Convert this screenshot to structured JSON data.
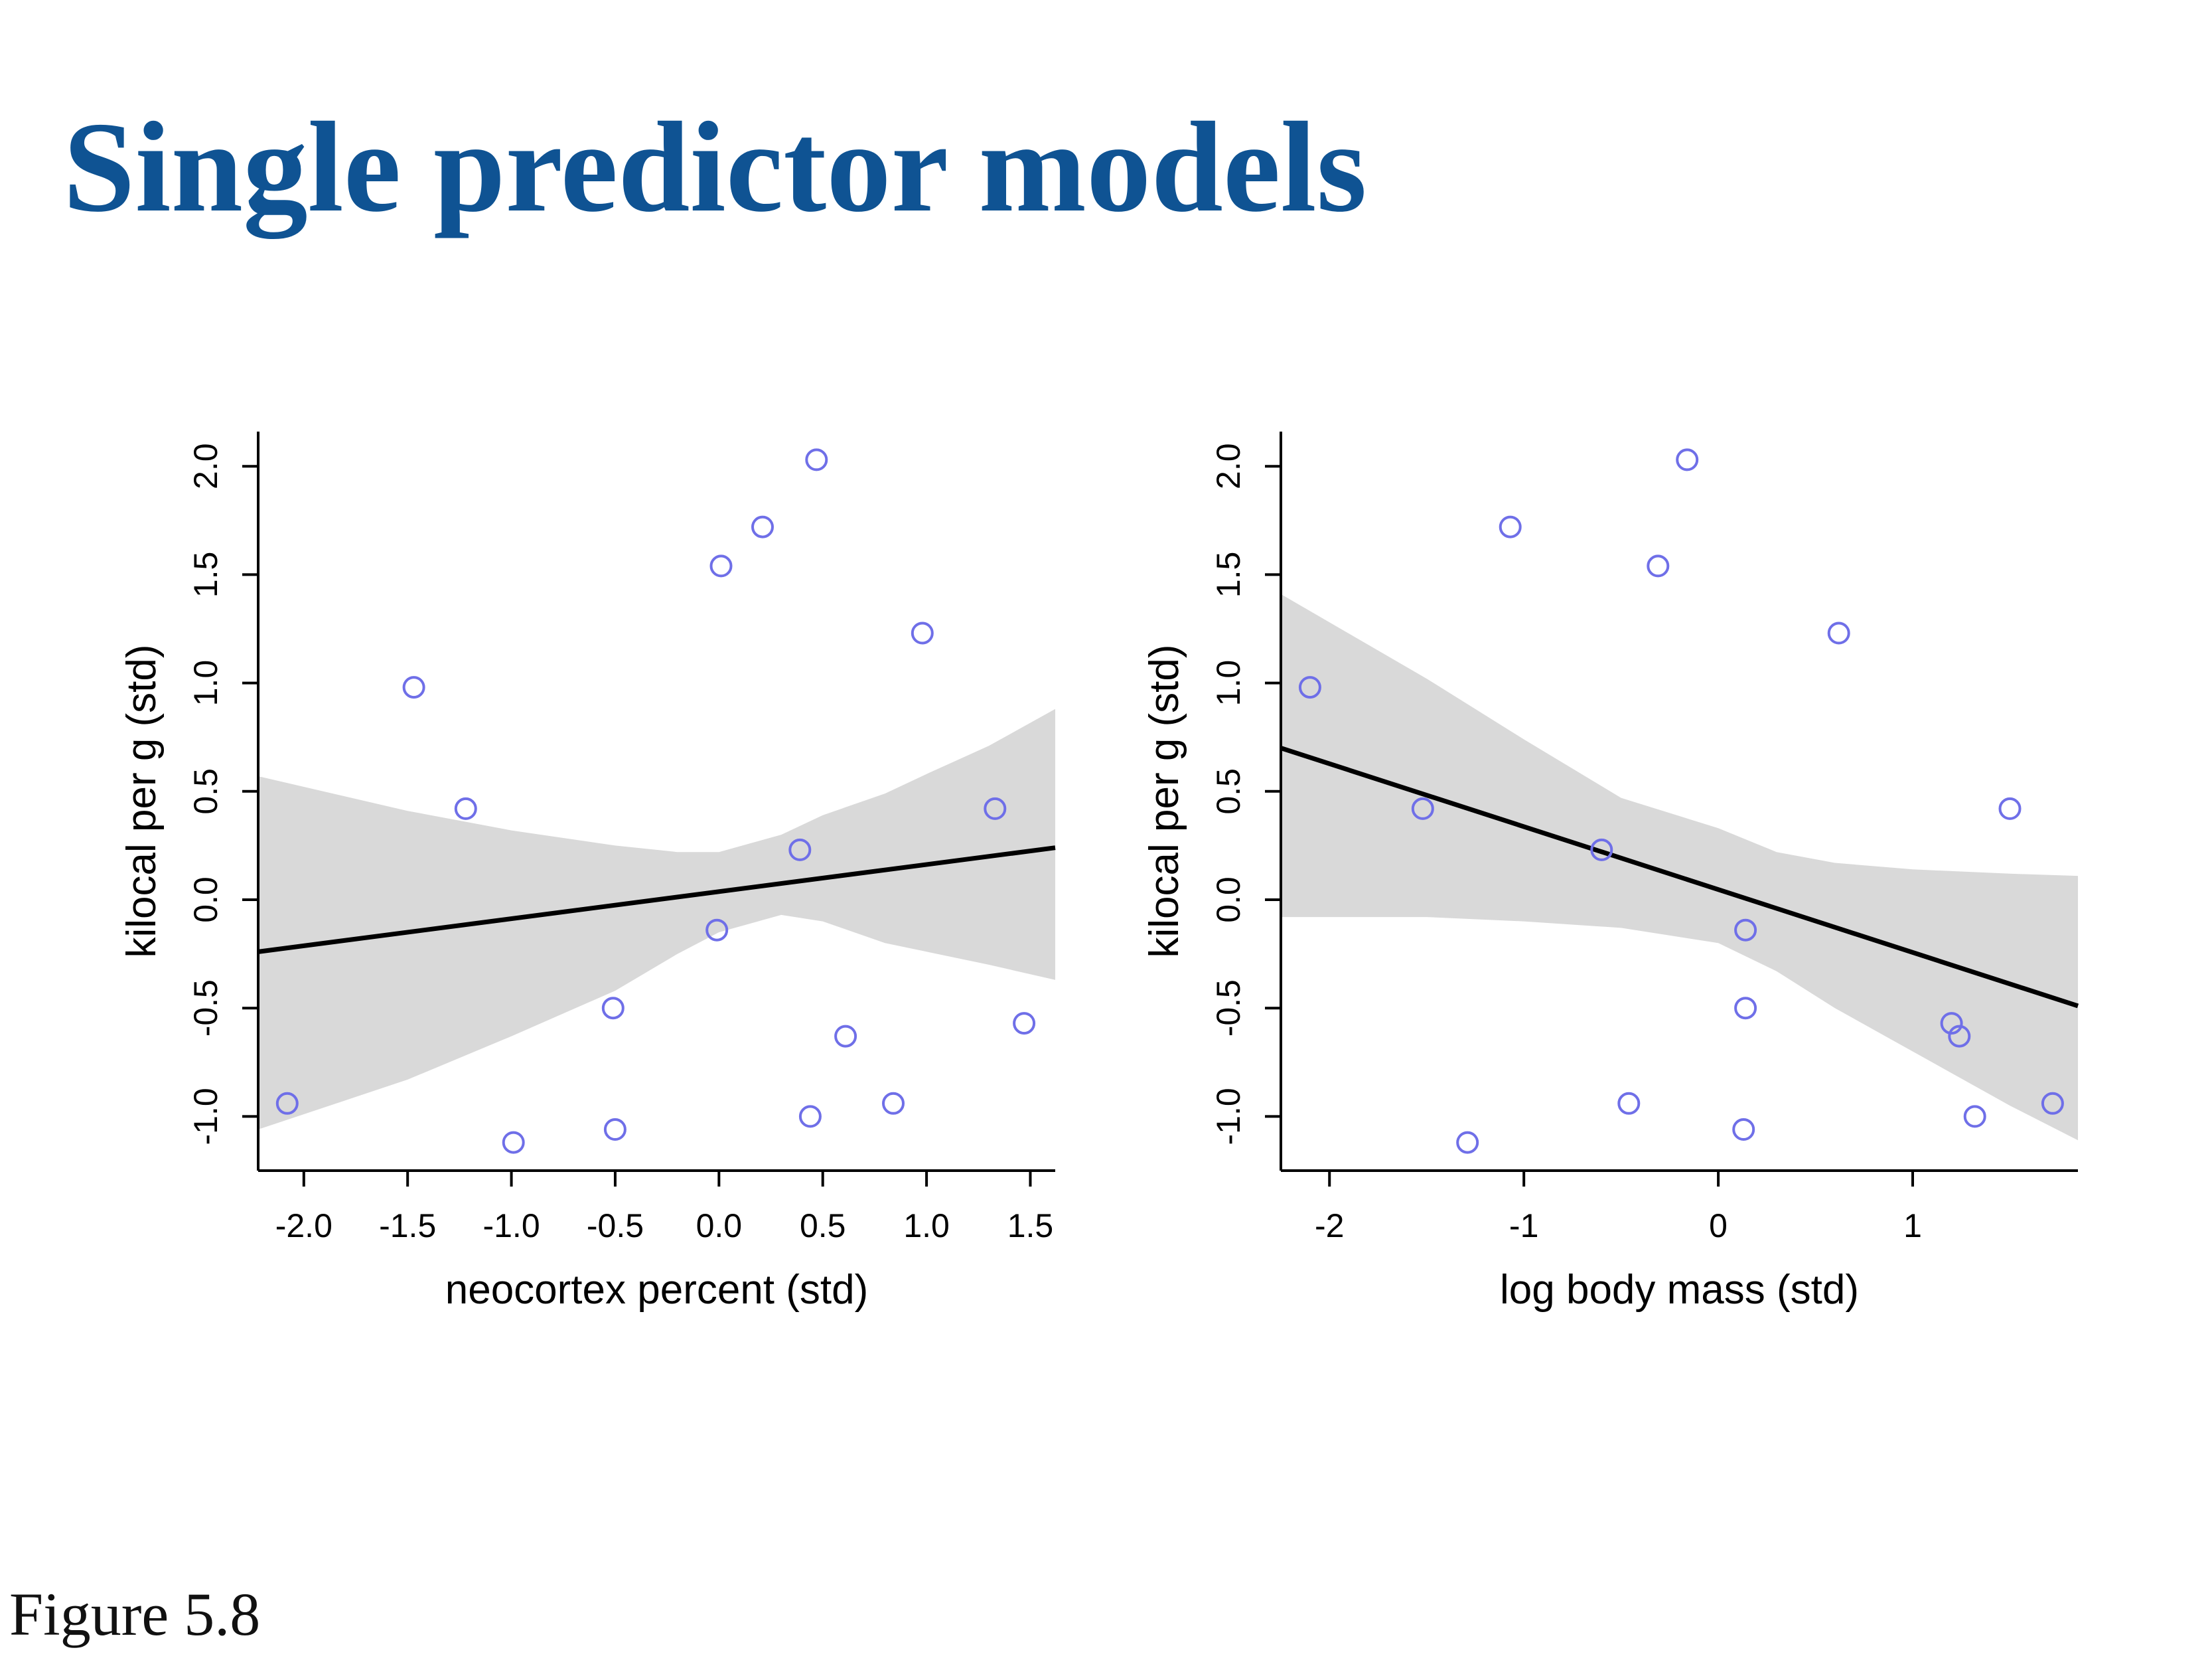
{
  "slide": {
    "title": "Single predictor models",
    "caption": "Figure 5.8"
  },
  "chart_data": [
    {
      "type": "scatter",
      "xlabel": "neocortex percent (std)",
      "ylabel": "kilocal per g (std)",
      "xlim": [
        -2.22,
        1.62
      ],
      "ylim": [
        -1.25,
        2.16
      ],
      "xticks": [
        -2.0,
        -1.5,
        -1.0,
        -0.5,
        0.0,
        0.5,
        1.0,
        1.5
      ],
      "xtick_labels": [
        "-2.0",
        "-1.5",
        "-1.0",
        "-0.5",
        "0.0",
        "0.5",
        "1.0",
        "1.5"
      ],
      "yticks": [
        -1.0,
        -0.5,
        0.0,
        0.5,
        1.0,
        1.5,
        2.0
      ],
      "ytick_labels": [
        "-1.0",
        "-0.5",
        "0.0",
        "0.5",
        "1.0",
        "1.5",
        "2.0"
      ],
      "points": {
        "x": [
          -2.08,
          -1.47,
          -1.22,
          -0.99,
          -0.51,
          -0.5,
          -0.01,
          0.01,
          0.21,
          0.39,
          0.44,
          0.47,
          0.61,
          0.84,
          0.98,
          1.33,
          1.47
        ],
        "y": [
          -0.94,
          0.98,
          0.42,
          -1.12,
          -0.5,
          -1.06,
          -0.14,
          1.54,
          1.72,
          0.23,
          -1.0,
          2.03,
          -0.63,
          -0.94,
          1.23,
          0.42,
          -0.57
        ]
      },
      "mean_line": {
        "x": [
          -2.22,
          1.62
        ],
        "y": [
          -0.24,
          0.24
        ]
      },
      "interval": {
        "x": [
          -2.22,
          -1.5,
          -1.0,
          -0.5,
          -0.2,
          0.0,
          0.3,
          0.5,
          0.8,
          1.0,
          1.3,
          1.62
        ],
        "lower": [
          -1.06,
          -0.83,
          -0.63,
          -0.42,
          -0.25,
          -0.15,
          -0.07,
          -0.1,
          -0.2,
          -0.24,
          -0.3,
          -0.37
        ],
        "upper": [
          0.57,
          0.41,
          0.32,
          0.25,
          0.22,
          0.22,
          0.3,
          0.39,
          0.49,
          0.58,
          0.71,
          0.88
        ]
      },
      "colors": {
        "points": "#6f6fe8",
        "line": "#000000",
        "interval": "#d9d9d9"
      }
    },
    {
      "type": "scatter",
      "xlabel": "log body mass (std)",
      "ylabel": "kilocal per g (std)",
      "xlim": [
        -2.25,
        1.85
      ],
      "ylim": [
        -1.25,
        2.16
      ],
      "xticks": [
        -2,
        -1,
        0,
        1
      ],
      "xtick_labels": [
        "-2",
        "-1",
        "0",
        "1"
      ],
      "yticks": [
        -1.0,
        -0.5,
        0.0,
        0.5,
        1.0,
        1.5,
        2.0
      ],
      "ytick_labels": [
        "-1.0",
        "-0.5",
        "0.0",
        "0.5",
        "1.0",
        "1.5",
        "2.0"
      ],
      "points": {
        "x": [
          -2.1,
          -1.52,
          -1.29,
          -1.07,
          -0.6,
          -0.46,
          -0.31,
          -0.16,
          0.13,
          0.14,
          0.14,
          0.62,
          1.2,
          1.24,
          1.32,
          1.5,
          1.72
        ],
        "y": [
          0.98,
          0.42,
          -1.12,
          1.72,
          0.23,
          -0.94,
          1.54,
          2.03,
          -1.06,
          -0.14,
          -0.5,
          1.23,
          -0.57,
          -0.63,
          -1.0,
          0.42,
          -0.94
        ]
      },
      "mean_line": {
        "x": [
          -2.25,
          1.85
        ],
        "y": [
          0.7,
          -0.49
        ]
      },
      "interval": {
        "x": [
          -2.25,
          -1.5,
          -1.0,
          -0.5,
          0.0,
          0.3,
          0.6,
          1.0,
          1.5,
          1.85
        ],
        "lower": [
          -0.08,
          -0.08,
          -0.1,
          -0.13,
          -0.2,
          -0.33,
          -0.5,
          -0.7,
          -0.95,
          -1.11
        ],
        "upper": [
          1.41,
          1.02,
          0.74,
          0.47,
          0.33,
          0.22,
          0.17,
          0.14,
          0.12,
          0.11
        ]
      },
      "colors": {
        "points": "#6f6fe8",
        "line": "#000000",
        "interval": "#d9d9d9"
      }
    }
  ]
}
